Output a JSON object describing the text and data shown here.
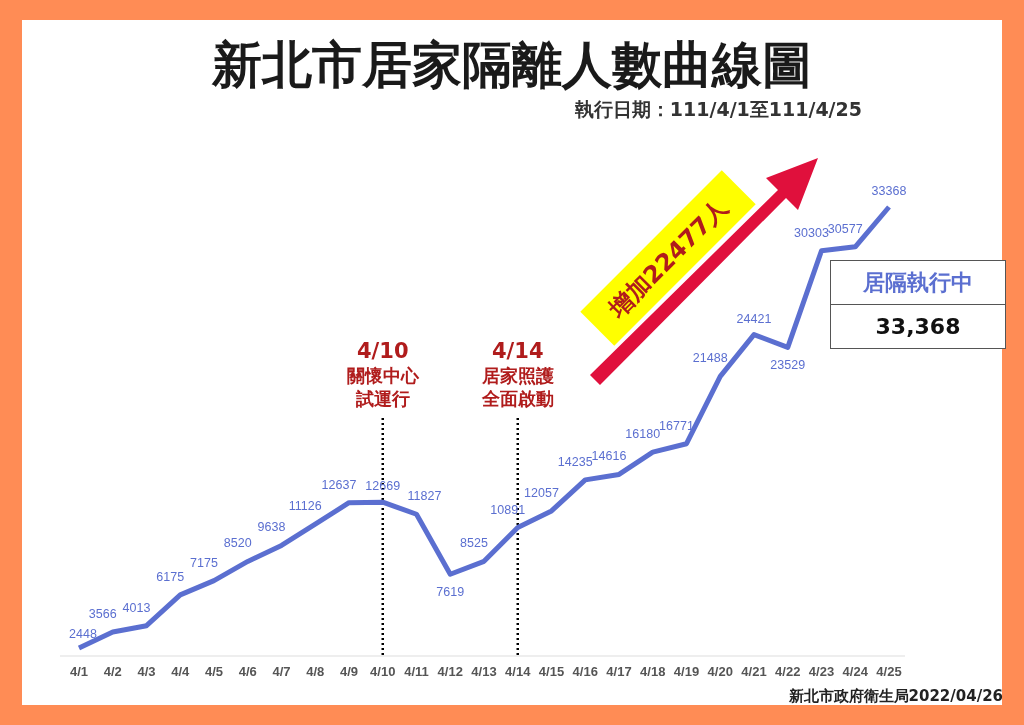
{
  "chart_data": {
    "type": "line",
    "title": "新北市居家隔離人數曲線圖",
    "subtitle": "執行日期：111/4/1至111/4/25",
    "categories": [
      "4/1",
      "4/2",
      "4/3",
      "4/4",
      "4/5",
      "4/6",
      "4/7",
      "4/8",
      "4/9",
      "4/10",
      "4/11",
      "4/12",
      "4/13",
      "4/14",
      "4/15",
      "4/16",
      "4/17",
      "4/18",
      "4/19",
      "4/20",
      "4/21",
      "4/22",
      "4/23",
      "4/24",
      "4/25"
    ],
    "series": [
      {
        "color": "#5b6fd0",
        "values": [
          2448,
          3566,
          4013,
          6175,
          7175,
          8520,
          9638,
          11126,
          12637,
          12669,
          11827,
          7619,
          8525,
          10891,
          12057,
          14235,
          14616,
          16180,
          16771,
          21488,
          24421,
          23529,
          30303,
          30577,
          33368
        ]
      }
    ],
    "data_labels": true,
    "marker": "none",
    "line_style": "solid",
    "ref_lines": [
      {
        "axis": "x",
        "value": "4/10",
        "label": "關懷中心試運行",
        "color": "#000000",
        "line_style": "dotted"
      },
      {
        "axis": "x",
        "value": "4/14",
        "label": "居家照護全面啟動",
        "color": "#000000",
        "line_style": "dotted"
      }
    ],
    "annotations": [
      "增加22477人",
      "居隔執行中",
      "33,368",
      "新北市政府衛生局2022/04/26"
    ]
  }
}
